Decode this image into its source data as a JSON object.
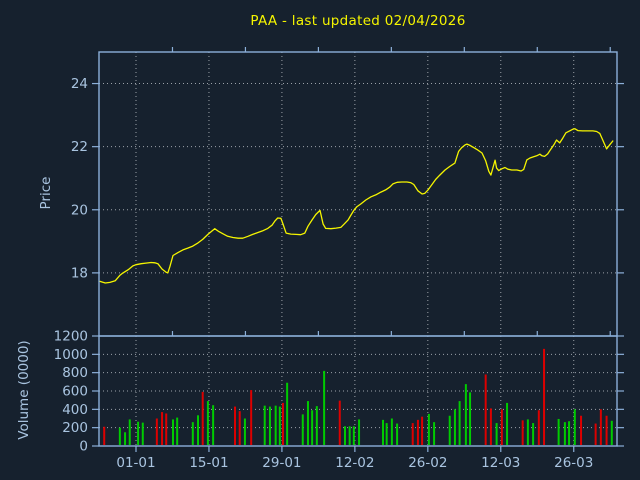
{
  "title": "PAA - last updated 02/04/2026",
  "colors": {
    "background": "#16212e",
    "frame": "#8cb0d9",
    "tick_label": "#a9c4e0",
    "title": "#f5f500",
    "grid": "#b4b9be"
  },
  "x_axis": {
    "lim": [
      0,
      99.4
    ],
    "major_ticks": [
      {
        "pos": 7.1,
        "label": "01-01"
      },
      {
        "pos": 21.1,
        "label": "15-01"
      },
      {
        "pos": 35.1,
        "label": "29-01"
      },
      {
        "pos": 49.1,
        "label": "12-02"
      },
      {
        "pos": 63.1,
        "label": "26-02"
      },
      {
        "pos": 77.1,
        "label": "12-03"
      },
      {
        "pos": 91.1,
        "label": "26-03"
      }
    ],
    "minor_ticks": [
      14.1,
      28.1,
      42.1,
      56.1,
      70.1,
      84.1,
      98.1
    ]
  },
  "chart_data": [
    {
      "type": "line",
      "name": "price",
      "title": "PAA - last updated 02/04/2026",
      "ylabel": "Price",
      "ylim": [
        16,
        25
      ],
      "yticks": [
        18,
        20,
        22,
        24
      ],
      "line_color": "#f5f500",
      "grid": true,
      "x_unit": "days since 25-12",
      "x": [
        0.2,
        1.2,
        2.1,
        3.1,
        4.0,
        4.6,
        5.6,
        6.5,
        7.1,
        8.1,
        9.0,
        10.0,
        10.7,
        11.3,
        12.1,
        12.9,
        13.2,
        13.6,
        14.2,
        15.2,
        16.1,
        17.1,
        18.0,
        19.0,
        19.9,
        20.9,
        21.7,
        22.2,
        23.0,
        23.8,
        24.7,
        25.7,
        26.7,
        27.6,
        28.6,
        29.5,
        30.5,
        31.5,
        32.4,
        33.2,
        33.8,
        34.3,
        34.9,
        35.3,
        35.9,
        36.8,
        37.8,
        38.7,
        39.5,
        40.1,
        40.9,
        41.6,
        42.4,
        43.0,
        43.5,
        44.5,
        45.5,
        46.4,
        47.0,
        47.8,
        48.3,
        48.9,
        49.5,
        50.2,
        51.2,
        52.2,
        53.1,
        54.1,
        55.0,
        55.8,
        56.4,
        57.2,
        58.1,
        59.1,
        59.8,
        60.4,
        61.2,
        62.0,
        62.5,
        63.1,
        63.9,
        64.6,
        65.4,
        66.4,
        67.3,
        68.3,
        69.0,
        69.6,
        70.2,
        70.6,
        71.2,
        71.9,
        72.7,
        73.5,
        74.2,
        74.8,
        75.2,
        75.8,
        76.0,
        76.3,
        76.7,
        77.3,
        77.9,
        78.4,
        79.2,
        80.2,
        81.0,
        81.5,
        82.1,
        82.7,
        83.4,
        84.0,
        84.6,
        85.0,
        85.5,
        86.1,
        86.7,
        87.3,
        87.8,
        88.4,
        89.0,
        89.6,
        90.3,
        90.9,
        91.3,
        91.9,
        92.8,
        93.8,
        94.8,
        95.5,
        96.1,
        96.7,
        97.4,
        98.0,
        98.6
      ],
      "prices": [
        17.73,
        17.68,
        17.7,
        17.75,
        17.92,
        18.0,
        18.1,
        18.22,
        18.26,
        18.29,
        18.31,
        18.33,
        18.32,
        18.29,
        18.12,
        18.02,
        18.0,
        18.2,
        18.55,
        18.65,
        18.73,
        18.79,
        18.85,
        18.95,
        19.06,
        19.22,
        19.33,
        19.4,
        19.31,
        19.24,
        19.16,
        19.12,
        19.1,
        19.1,
        19.16,
        19.22,
        19.28,
        19.34,
        19.41,
        19.51,
        19.65,
        19.74,
        19.73,
        19.55,
        19.26,
        19.23,
        19.22,
        19.21,
        19.26,
        19.48,
        19.68,
        19.85,
        19.98,
        19.55,
        19.41,
        19.4,
        19.42,
        19.44,
        19.54,
        19.68,
        19.82,
        19.98,
        20.1,
        20.18,
        20.31,
        20.41,
        20.47,
        20.56,
        20.63,
        20.72,
        20.82,
        20.87,
        20.88,
        20.88,
        20.86,
        20.8,
        20.6,
        20.5,
        20.52,
        20.62,
        20.8,
        20.96,
        21.1,
        21.26,
        21.37,
        21.48,
        21.85,
        21.97,
        22.05,
        22.08,
        22.04,
        21.97,
        21.89,
        21.8,
        21.55,
        21.22,
        21.1,
        21.45,
        21.57,
        21.32,
        21.24,
        21.3,
        21.34,
        21.29,
        21.26,
        21.26,
        21.23,
        21.28,
        21.58,
        21.64,
        21.68,
        21.71,
        21.76,
        21.71,
        21.69,
        21.77,
        21.92,
        22.06,
        22.21,
        22.12,
        22.27,
        22.44,
        22.5,
        22.55,
        22.57,
        22.51,
        22.5,
        22.5,
        22.5,
        22.48,
        22.42,
        22.2,
        21.93,
        22.06,
        22.18
      ]
    },
    {
      "type": "bar",
      "name": "volume",
      "ylabel": "Volume (0000)",
      "ylim": [
        0,
        1200
      ],
      "yticks": [
        0,
        200,
        400,
        600,
        800,
        1000,
        1200
      ],
      "up_color": "#00cc00",
      "down_color": "#dd0000",
      "grid": true,
      "x_unit": "days since 25-12",
      "x": [
        1.0,
        4.0,
        5.0,
        5.9,
        7.5,
        8.4,
        11.1,
        12.1,
        12.9,
        14.2,
        15.0,
        18.0,
        19.0,
        19.9,
        20.9,
        21.9,
        26.1,
        27.0,
        28.0,
        29.2,
        31.8,
        32.8,
        33.9,
        34.7,
        35.3,
        36.1,
        39.1,
        40.1,
        40.9,
        41.8,
        43.2,
        46.2,
        47.2,
        48.1,
        48.9,
        49.9,
        54.5,
        55.2,
        56.2,
        57.2,
        60.2,
        61.2,
        62.0,
        63.3,
        64.3,
        67.3,
        68.3,
        69.2,
        70.4,
        71.2,
        74.2,
        75.2,
        76.3,
        77.3,
        78.3,
        81.3,
        82.3,
        83.3,
        84.4,
        85.4,
        88.2,
        89.4,
        90.2,
        91.3,
        92.5,
        95.3,
        96.3,
        97.4,
        98.4
      ],
      "values": [
        210,
        200,
        150,
        290,
        265,
        255,
        300,
        370,
        355,
        290,
        310,
        260,
        335,
        590,
        490,
        445,
        430,
        380,
        300,
        610,
        440,
        430,
        440,
        430,
        470,
        690,
        345,
        490,
        390,
        435,
        820,
        495,
        215,
        215,
        215,
        290,
        285,
        250,
        300,
        245,
        250,
        285,
        320,
        350,
        260,
        330,
        400,
        490,
        675,
        585,
        780,
        410,
        250,
        400,
        470,
        280,
        290,
        250,
        390,
        1060,
        295,
        260,
        270,
        400,
        330,
        245,
        400,
        330,
        275
      ],
      "direction": [
        "down",
        "up",
        "up",
        "up",
        "up",
        "up",
        "down",
        "down",
        "down",
        "up",
        "up",
        "up",
        "up",
        "down",
        "up",
        "up",
        "down",
        "down",
        "up",
        "down",
        "up",
        "up",
        "up",
        "up",
        "down",
        "up",
        "up",
        "up",
        "up",
        "up",
        "up",
        "down",
        "up",
        "up",
        "up",
        "up",
        "up",
        "up",
        "up",
        "up",
        "down",
        "down",
        "down",
        "up",
        "up",
        "up",
        "up",
        "up",
        "up",
        "up",
        "down",
        "down",
        "up",
        "down",
        "up",
        "down",
        "up",
        "up",
        "down",
        "down",
        "up",
        "up",
        "up",
        "up",
        "down",
        "down",
        "down",
        "down",
        "up"
      ]
    }
  ]
}
